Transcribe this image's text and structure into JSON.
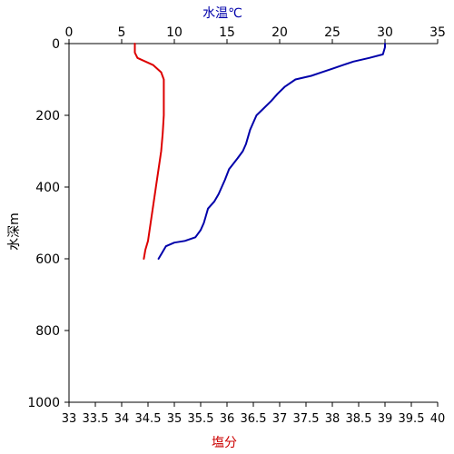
{
  "chart_data": {
    "type": "line",
    "title": "",
    "top_axis": {
      "label": "水温℃",
      "range": [
        0,
        35
      ],
      "ticks": [
        0,
        5,
        10,
        15,
        20,
        25,
        30,
        35
      ],
      "tick_labels": [
        "0",
        "5",
        "10",
        "15",
        "20",
        "25",
        "30",
        "35"
      ]
    },
    "bottom_axis": {
      "label": "塩分",
      "range": [
        33,
        40
      ],
      "ticks": [
        33,
        33.5,
        34,
        34.5,
        35,
        35.5,
        36,
        36.5,
        37,
        37.5,
        38,
        38.5,
        39,
        39.5,
        40
      ],
      "tick_labels": [
        "33",
        "33.5",
        "34",
        "34.5",
        "35",
        "35.5",
        "36",
        "36.5",
        "37",
        "37.5",
        "38",
        "38.5",
        "39",
        "39.5",
        "40"
      ]
    },
    "y_axis": {
      "label": "水深m",
      "range": [
        0,
        1000
      ],
      "inverted": true,
      "ticks": [
        0,
        200,
        400,
        600,
        800,
        1000
      ],
      "tick_labels": [
        "0",
        "200",
        "400",
        "600",
        "800",
        "1000"
      ]
    },
    "grid": false,
    "series": [
      {
        "axis": "top",
        "color": "#0000aa",
        "points": [
          [
            30.0,
            0
          ],
          [
            30.0,
            10
          ],
          [
            29.8,
            30
          ],
          [
            28.5,
            40
          ],
          [
            27.0,
            50
          ],
          [
            26.0,
            60
          ],
          [
            25.0,
            70
          ],
          [
            24.0,
            80
          ],
          [
            23.0,
            90
          ],
          [
            21.5,
            100
          ],
          [
            20.5,
            120
          ],
          [
            19.8,
            140
          ],
          [
            19.2,
            160
          ],
          [
            18.5,
            180
          ],
          [
            17.8,
            200
          ],
          [
            17.5,
            220
          ],
          [
            17.2,
            240
          ],
          [
            17.0,
            260
          ],
          [
            16.8,
            280
          ],
          [
            16.5,
            300
          ],
          [
            16.0,
            320
          ],
          [
            15.2,
            350
          ],
          [
            14.8,
            380
          ],
          [
            14.5,
            400
          ],
          [
            14.2,
            420
          ],
          [
            13.8,
            440
          ],
          [
            13.2,
            460
          ],
          [
            13.0,
            480
          ],
          [
            12.8,
            500
          ],
          [
            12.5,
            520
          ],
          [
            12.0,
            540
          ],
          [
            11.0,
            550
          ],
          [
            10.0,
            555
          ],
          [
            9.2,
            565
          ],
          [
            8.8,
            585
          ],
          [
            8.5,
            600
          ]
        ]
      },
      {
        "axis": "bottom",
        "color": "#dd0000",
        "points": [
          [
            34.25,
            0
          ],
          [
            34.25,
            25
          ],
          [
            34.3,
            40
          ],
          [
            34.6,
            60
          ],
          [
            34.75,
            80
          ],
          [
            34.8,
            100
          ],
          [
            34.8,
            150
          ],
          [
            34.8,
            200
          ],
          [
            34.78,
            250
          ],
          [
            34.75,
            300
          ],
          [
            34.7,
            350
          ],
          [
            34.65,
            400
          ],
          [
            34.6,
            450
          ],
          [
            34.55,
            500
          ],
          [
            34.5,
            550
          ],
          [
            34.45,
            575
          ],
          [
            34.42,
            600
          ]
        ]
      }
    ]
  }
}
